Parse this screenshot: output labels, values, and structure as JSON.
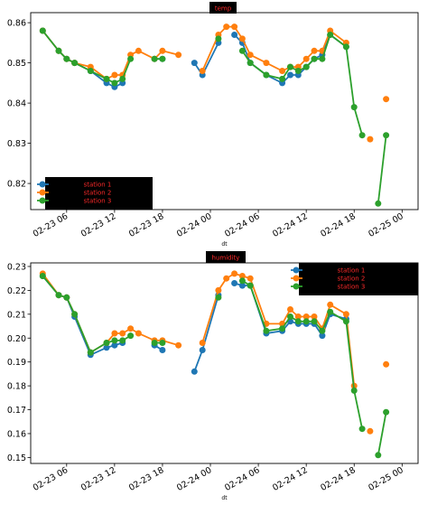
{
  "colors": {
    "series": [
      "#1f77b4",
      "#ff7f0e",
      "#2ca02c"
    ],
    "title_bg": "#000000",
    "title_text": "#ff2a2a",
    "legend_bg": "#000000",
    "legend_text": "#ff2a2a",
    "axis": "#000000"
  },
  "chart_data": [
    {
      "type": "line",
      "title": "temp",
      "xlabel": "dt",
      "ylabel": "",
      "x_type": "datetime",
      "xlim": [
        "2025-02-23 01:30",
        "2025-02-25 02:00"
      ],
      "ylim": [
        0.8135,
        0.8625
      ],
      "yticks": [
        0.82,
        0.83,
        0.84,
        0.85,
        0.86
      ],
      "ytick_labels": [
        "0.82",
        "0.83",
        "0.84",
        "0.85",
        "0.86"
      ],
      "xticks": [
        "2025-02-23 06:00",
        "2025-02-23 12:00",
        "2025-02-23 18:00",
        "2025-02-24 00:00",
        "2025-02-24 06:00",
        "2025-02-24 12:00",
        "2025-02-24 18:00",
        "2025-02-25 00:00"
      ],
      "xtick_labels": [
        "02-23 06",
        "02-23 12",
        "02-23 18",
        "02-24 00",
        "02-24 06",
        "02-24 12",
        "02-24 18",
        "02-25 00"
      ],
      "grid": false,
      "legend": "lower-left",
      "x": [
        "2025-02-23 03:00",
        "2025-02-23 05:00",
        "2025-02-23 06:00",
        "2025-02-23 07:00",
        "2025-02-23 09:00",
        "2025-02-23 11:00",
        "2025-02-23 12:00",
        "2025-02-23 13:00",
        "2025-02-23 14:00",
        "2025-02-23 15:00",
        "2025-02-23 17:00",
        "2025-02-23 18:00",
        "2025-02-23 20:00",
        "2025-02-23 22:00",
        "2025-02-23 23:00",
        "2025-02-24 01:00",
        "2025-02-24 02:00",
        "2025-02-24 03:00",
        "2025-02-24 04:00",
        "2025-02-24 05:00",
        "2025-02-24 07:00",
        "2025-02-24 09:00",
        "2025-02-24 10:00",
        "2025-02-24 11:00",
        "2025-02-24 12:00",
        "2025-02-24 13:00",
        "2025-02-24 14:00",
        "2025-02-24 15:00",
        "2025-02-24 17:00",
        "2025-02-24 18:00",
        "2025-02-24 19:00",
        "2025-02-24 20:00",
        "2025-02-24 21:00",
        "2025-02-24 22:00",
        "2025-02-24 23:00"
      ],
      "series": [
        {
          "name": "station 1",
          "values": [
            0.858,
            0.853,
            0.851,
            0.85,
            0.848,
            0.845,
            0.844,
            0.845,
            null,
            null,
            0.851,
            0.851,
            null,
            0.85,
            0.847,
            0.855,
            null,
            0.857,
            0.855,
            0.85,
            0.847,
            0.845,
            0.847,
            0.847,
            0.849,
            0.851,
            0.852,
            0.857,
            0.854,
            null,
            null,
            null,
            null,
            null,
            null
          ]
        },
        {
          "name": "station 2",
          "values": [
            0.858,
            0.853,
            0.851,
            0.85,
            0.849,
            0.846,
            0.847,
            0.847,
            0.852,
            0.853,
            0.851,
            0.853,
            0.852,
            null,
            0.848,
            0.857,
            0.859,
            0.859,
            0.856,
            0.852,
            0.85,
            0.848,
            0.849,
            0.849,
            0.851,
            0.853,
            0.853,
            0.858,
            0.855,
            null,
            null,
            0.831,
            null,
            0.841,
            null
          ]
        },
        {
          "name": "station 3",
          "values": [
            0.858,
            0.853,
            0.851,
            0.85,
            0.848,
            0.846,
            0.845,
            0.846,
            0.851,
            null,
            0.851,
            0.851,
            null,
            null,
            null,
            0.856,
            null,
            null,
            0.853,
            0.85,
            0.847,
            0.846,
            0.849,
            0.848,
            0.849,
            0.851,
            0.851,
            0.857,
            0.854,
            0.839,
            0.832,
            null,
            0.815,
            0.832,
            null
          ]
        }
      ]
    },
    {
      "type": "line",
      "title": "humidity",
      "xlabel": "dt",
      "ylabel": "",
      "x_type": "datetime",
      "xlim": [
        "2025-02-23 01:30",
        "2025-02-25 02:00"
      ],
      "ylim": [
        0.1475,
        0.2315
      ],
      "yticks": [
        0.15,
        0.16,
        0.17,
        0.18,
        0.19,
        0.2,
        0.21,
        0.22,
        0.23
      ],
      "ytick_labels": [
        "0.15",
        "0.16",
        "0.17",
        "0.18",
        "0.19",
        "0.20",
        "0.21",
        "0.22",
        "0.23"
      ],
      "xticks": [
        "2025-02-23 06:00",
        "2025-02-23 12:00",
        "2025-02-23 18:00",
        "2025-02-24 00:00",
        "2025-02-24 06:00",
        "2025-02-24 12:00",
        "2025-02-24 18:00",
        "2025-02-25 00:00"
      ],
      "xtick_labels": [
        "02-23 06",
        "02-23 12",
        "02-23 18",
        "02-24 00",
        "02-24 06",
        "02-24 12",
        "02-24 18",
        "02-25 00"
      ],
      "grid": false,
      "legend": "top-right",
      "x": [
        "2025-02-23 03:00",
        "2025-02-23 05:00",
        "2025-02-23 06:00",
        "2025-02-23 07:00",
        "2025-02-23 09:00",
        "2025-02-23 11:00",
        "2025-02-23 12:00",
        "2025-02-23 13:00",
        "2025-02-23 14:00",
        "2025-02-23 15:00",
        "2025-02-23 17:00",
        "2025-02-23 18:00",
        "2025-02-23 20:00",
        "2025-02-23 22:00",
        "2025-02-23 23:00",
        "2025-02-24 01:00",
        "2025-02-24 02:00",
        "2025-02-24 03:00",
        "2025-02-24 04:00",
        "2025-02-24 05:00",
        "2025-02-24 07:00",
        "2025-02-24 09:00",
        "2025-02-24 10:00",
        "2025-02-24 11:00",
        "2025-02-24 12:00",
        "2025-02-24 13:00",
        "2025-02-24 14:00",
        "2025-02-24 15:00",
        "2025-02-24 17:00",
        "2025-02-24 18:00",
        "2025-02-24 19:00",
        "2025-02-24 20:00",
        "2025-02-24 21:00",
        "2025-02-24 22:00",
        "2025-02-24 23:00"
      ],
      "series": [
        {
          "name": "station 1",
          "values": [
            0.226,
            0.218,
            0.217,
            0.209,
            0.193,
            0.196,
            0.197,
            0.198,
            null,
            null,
            0.197,
            0.195,
            null,
            0.186,
            0.195,
            0.218,
            null,
            0.223,
            0.222,
            0.222,
            0.202,
            0.203,
            0.207,
            0.206,
            0.206,
            0.206,
            0.201,
            0.21,
            0.208,
            null,
            null,
            null,
            null,
            null,
            null
          ]
        },
        {
          "name": "station 2",
          "values": [
            0.227,
            0.218,
            0.217,
            0.21,
            0.194,
            0.198,
            0.202,
            0.202,
            0.204,
            0.202,
            0.199,
            0.199,
            0.197,
            null,
            0.198,
            0.22,
            0.225,
            0.227,
            0.226,
            0.225,
            0.206,
            0.206,
            0.212,
            0.209,
            0.209,
            0.209,
            0.204,
            0.214,
            0.21,
            0.18,
            null,
            0.161,
            null,
            0.189,
            null
          ]
        },
        {
          "name": "station 3",
          "values": [
            0.226,
            0.218,
            0.217,
            0.21,
            0.194,
            0.198,
            0.199,
            0.199,
            0.201,
            null,
            0.198,
            0.198,
            null,
            null,
            null,
            0.217,
            null,
            null,
            0.224,
            0.222,
            0.203,
            0.204,
            0.209,
            0.207,
            0.207,
            0.207,
            0.203,
            0.211,
            0.207,
            0.178,
            0.162,
            null,
            0.151,
            0.169,
            null
          ]
        }
      ]
    }
  ]
}
